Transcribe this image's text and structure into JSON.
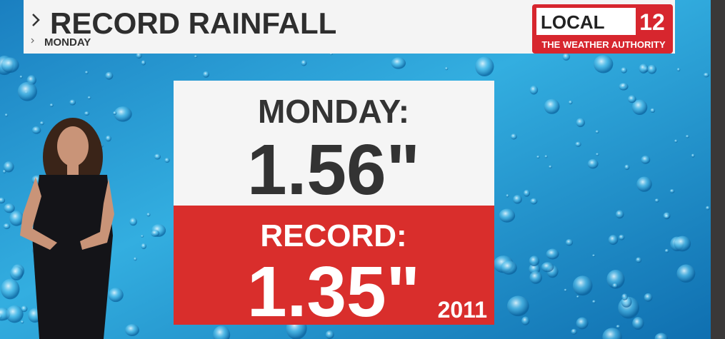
{
  "header": {
    "title": "RECORD RAINFALL",
    "subtitle": "MONDAY"
  },
  "logo": {
    "name": "LOCAL",
    "number": "12",
    "tagline": "THE WEATHER AUTHORITY"
  },
  "panel": {
    "today_label": "MONDAY:",
    "today_value": "1.56\"",
    "record_label": "RECORD:",
    "record_value": "1.35\"",
    "record_year": "2011"
  }
}
